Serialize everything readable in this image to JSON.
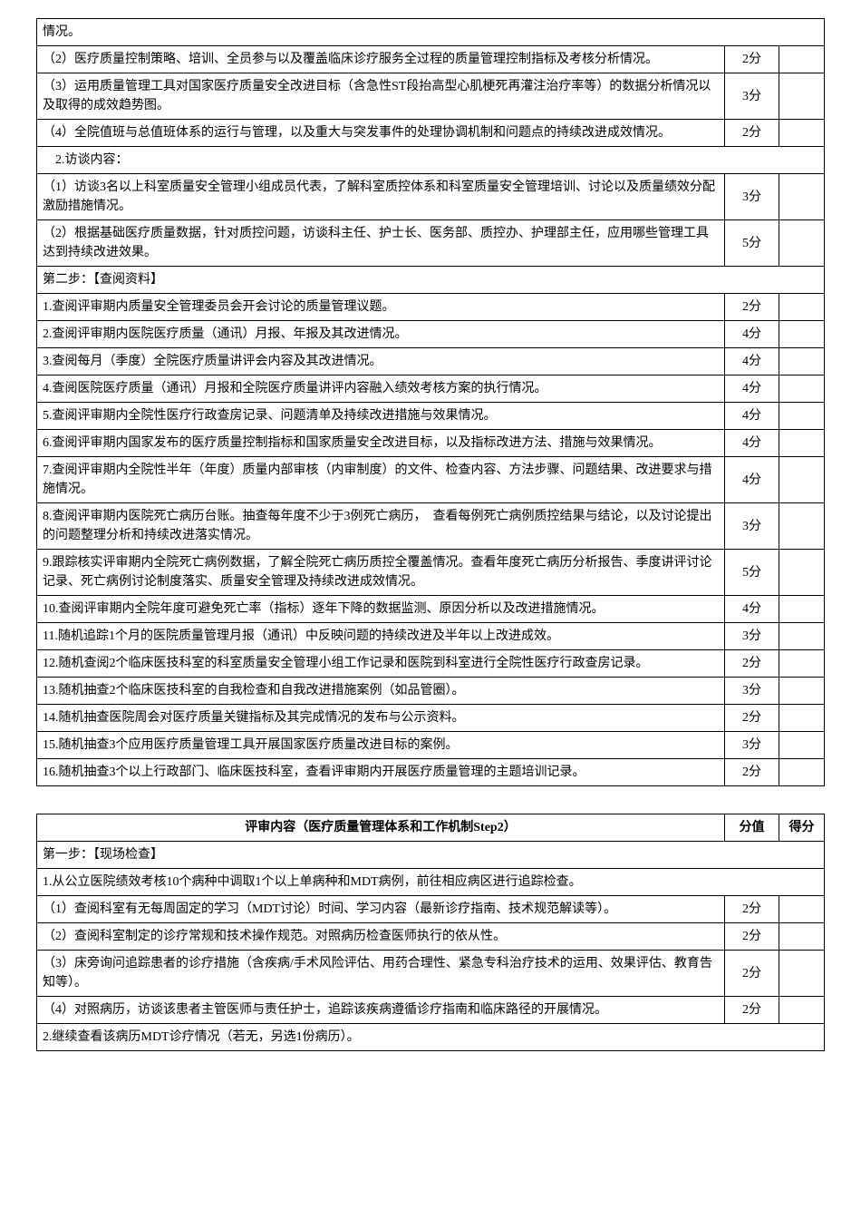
{
  "table1": {
    "rows": [
      {
        "content": "情况。",
        "score": "",
        "noScore": true
      },
      {
        "content": "（2）医疗质量控制策略、培训、全员参与以及覆盖临床诊疗服务全过程的质量管理控制指标及考核分析情况。",
        "score": "2分"
      },
      {
        "content": "（3）运用质量管理工具对国家医疗质量安全改进目标（含急性ST段抬高型心肌梗死再灌注治疗率等）的数据分析情况以及取得的成效趋势图。",
        "score": "3分"
      },
      {
        "content": "（4）全院值班与总值班体系的运行与管理，以及重大与突发事件的处理协调机制和问题点的持续改进成效情况。",
        "score": "2分"
      },
      {
        "content": "　2.访谈内容：",
        "score": "",
        "noScore": true
      },
      {
        "content": "（1）访谈3名以上科室质量安全管理小组成员代表，了解科室质控体系和科室质量安全管理培训、讨论以及质量绩效分配激励措施情况。",
        "score": "3分"
      },
      {
        "content": "（2）根据基础医疗质量数据，针对质控问题，访谈科主任、护士长、医务部、质控办、护理部主任，应用哪些管理工具达到持续改进效果。",
        "score": "5分"
      },
      {
        "content": "第二步：【查阅资料】",
        "score": "",
        "noScore": true
      },
      {
        "content": "1.查阅评审期内质量安全管理委员会开会讨论的质量管理议题。",
        "score": "2分"
      },
      {
        "content": "2.查阅评审期内医院医疗质量（通讯）月报、年报及其改进情况。",
        "score": "4分"
      },
      {
        "content": "3.查阅每月（季度）全院医疗质量讲评会内容及其改进情况。",
        "score": "4分"
      },
      {
        "content": "4.查阅医院医疗质量（通讯）月报和全院医疗质量讲评内容融入绩效考核方案的执行情况。",
        "score": "4分"
      },
      {
        "content": "5.查阅评审期内全院性医疗行政查房记录、问题清单及持续改进措施与效果情况。",
        "score": "4分"
      },
      {
        "content": "6.查阅评审期内国家发布的医疗质量控制指标和国家质量安全改进目标，以及指标改进方法、措施与效果情况。",
        "score": "4分"
      },
      {
        "content": "7.查阅评审期内全院性半年（年度）质量内部审核（内审制度）的文件、检查内容、方法步骤、问题结果、改进要求与措施情况。",
        "score": "4分"
      },
      {
        "content": "8.查阅评审期内医院死亡病历台账。抽查每年度不少于3例死亡病历，　查看每例死亡病例质控结果与结论，以及讨论提出的问题整理分析和持续改进落实情况。",
        "score": "3分"
      },
      {
        "content": "9.跟踪核实评审期内全院死亡病例数据，了解全院死亡病历质控全覆盖情况。查看年度死亡病历分析报告、季度讲评讨论记录、死亡病例讨论制度落实、质量安全管理及持续改进成效情况。",
        "score": "5分"
      },
      {
        "content": "10.查阅评审期内全院年度可避免死亡率（指标）逐年下降的数据监测、原因分析以及改进措施情况。",
        "score": "4分"
      },
      {
        "content": "11.随机追踪1个月的医院质量管理月报（通讯）中反映问题的持续改进及半年以上改进成效。",
        "score": "3分"
      },
      {
        "content": "12.随机查阅2个临床医技科室的科室质量安全管理小组工作记录和医院到科室进行全院性医疗行政查房记录。",
        "score": "2分"
      },
      {
        "content": "13.随机抽查2个临床医技科室的自我检查和自我改进措施案例（如品管圈）。",
        "score": "3分"
      },
      {
        "content": "14.随机抽查医院周会对医疗质量关键指标及其完成情况的发布与公示资料。",
        "score": "2分"
      },
      {
        "content": "15.随机抽查3个应用医疗质量管理工具开展国家医疗质量改进目标的案例。",
        "score": "3分"
      },
      {
        "content": "16.随机抽查3个以上行政部门、临床医技科室，查看评审期内开展医疗质量管理的主题培训记录。",
        "score": "2分"
      }
    ]
  },
  "table2": {
    "title": "评审内容（医疗质量管理体系和工作机制Step2）",
    "scoreHeader": "分值",
    "markHeader": "得分",
    "rows": [
      {
        "content": "第一步：【现场检查】",
        "score": "",
        "noScore": true
      },
      {
        "content": "1.从公立医院绩效考核10个病种中调取1个以上单病种和MDT病例，前往相应病区进行追踪检查。",
        "score": "",
        "noScore": true
      },
      {
        "content": "（1）查阅科室有无每周固定的学习（MDT讨论）时间、学习内容（最新诊疗指南、技术规范解读等）。",
        "score": "2分"
      },
      {
        "content": "（2）查阅科室制定的诊疗常规和技术操作规范。对照病历检查医师执行的依从性。",
        "score": "2分"
      },
      {
        "content": "（3）床旁询问追踪患者的诊疗措施（含疾病/手术风险评估、用药合理性、紧急专科治疗技术的运用、效果评估、教育告知等）。",
        "score": "2分"
      },
      {
        "content": "（4）对照病历，访谈该患者主管医师与责任护士，追踪该疾病遵循诊疗指南和临床路径的开展情况。",
        "score": "2分"
      },
      {
        "content": "2.继续查看该病历MDT诊疗情况（若无，另选1份病历）。",
        "score": "",
        "noScore": true
      }
    ]
  }
}
